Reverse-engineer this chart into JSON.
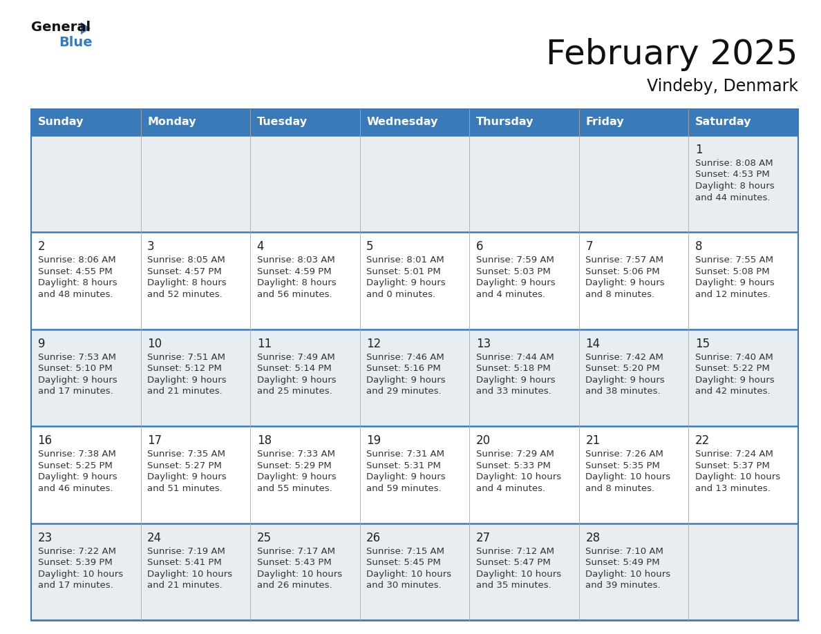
{
  "title": "February 2025",
  "subtitle": "Vindeby, Denmark",
  "header_color": "#3a7ab8",
  "header_text_color": "#ffffff",
  "row_bg_gray": "#e8edf2",
  "row_bg_white": "#ffffff",
  "line_color": "#3a7ab8",
  "days_of_week": [
    "Sunday",
    "Monday",
    "Tuesday",
    "Wednesday",
    "Thursday",
    "Friday",
    "Saturday"
  ],
  "calendar_data": [
    [
      {
        "day": null
      },
      {
        "day": null
      },
      {
        "day": null
      },
      {
        "day": null
      },
      {
        "day": null
      },
      {
        "day": null
      },
      {
        "day": 1,
        "sunrise": "8:08 AM",
        "sunset": "4:53 PM",
        "daylight1": "Daylight: 8 hours",
        "daylight2": "and 44 minutes."
      }
    ],
    [
      {
        "day": 2,
        "sunrise": "8:06 AM",
        "sunset": "4:55 PM",
        "daylight1": "Daylight: 8 hours",
        "daylight2": "and 48 minutes."
      },
      {
        "day": 3,
        "sunrise": "8:05 AM",
        "sunset": "4:57 PM",
        "daylight1": "Daylight: 8 hours",
        "daylight2": "and 52 minutes."
      },
      {
        "day": 4,
        "sunrise": "8:03 AM",
        "sunset": "4:59 PM",
        "daylight1": "Daylight: 8 hours",
        "daylight2": "and 56 minutes."
      },
      {
        "day": 5,
        "sunrise": "8:01 AM",
        "sunset": "5:01 PM",
        "daylight1": "Daylight: 9 hours",
        "daylight2": "and 0 minutes."
      },
      {
        "day": 6,
        "sunrise": "7:59 AM",
        "sunset": "5:03 PM",
        "daylight1": "Daylight: 9 hours",
        "daylight2": "and 4 minutes."
      },
      {
        "day": 7,
        "sunrise": "7:57 AM",
        "sunset": "5:06 PM",
        "daylight1": "Daylight: 9 hours",
        "daylight2": "and 8 minutes."
      },
      {
        "day": 8,
        "sunrise": "7:55 AM",
        "sunset": "5:08 PM",
        "daylight1": "Daylight: 9 hours",
        "daylight2": "and 12 minutes."
      }
    ],
    [
      {
        "day": 9,
        "sunrise": "7:53 AM",
        "sunset": "5:10 PM",
        "daylight1": "Daylight: 9 hours",
        "daylight2": "and 17 minutes."
      },
      {
        "day": 10,
        "sunrise": "7:51 AM",
        "sunset": "5:12 PM",
        "daylight1": "Daylight: 9 hours",
        "daylight2": "and 21 minutes."
      },
      {
        "day": 11,
        "sunrise": "7:49 AM",
        "sunset": "5:14 PM",
        "daylight1": "Daylight: 9 hours",
        "daylight2": "and 25 minutes."
      },
      {
        "day": 12,
        "sunrise": "7:46 AM",
        "sunset": "5:16 PM",
        "daylight1": "Daylight: 9 hours",
        "daylight2": "and 29 minutes."
      },
      {
        "day": 13,
        "sunrise": "7:44 AM",
        "sunset": "5:18 PM",
        "daylight1": "Daylight: 9 hours",
        "daylight2": "and 33 minutes."
      },
      {
        "day": 14,
        "sunrise": "7:42 AM",
        "sunset": "5:20 PM",
        "daylight1": "Daylight: 9 hours",
        "daylight2": "and 38 minutes."
      },
      {
        "day": 15,
        "sunrise": "7:40 AM",
        "sunset": "5:22 PM",
        "daylight1": "Daylight: 9 hours",
        "daylight2": "and 42 minutes."
      }
    ],
    [
      {
        "day": 16,
        "sunrise": "7:38 AM",
        "sunset": "5:25 PM",
        "daylight1": "Daylight: 9 hours",
        "daylight2": "and 46 minutes."
      },
      {
        "day": 17,
        "sunrise": "7:35 AM",
        "sunset": "5:27 PM",
        "daylight1": "Daylight: 9 hours",
        "daylight2": "and 51 minutes."
      },
      {
        "day": 18,
        "sunrise": "7:33 AM",
        "sunset": "5:29 PM",
        "daylight1": "Daylight: 9 hours",
        "daylight2": "and 55 minutes."
      },
      {
        "day": 19,
        "sunrise": "7:31 AM",
        "sunset": "5:31 PM",
        "daylight1": "Daylight: 9 hours",
        "daylight2": "and 59 minutes."
      },
      {
        "day": 20,
        "sunrise": "7:29 AM",
        "sunset": "5:33 PM",
        "daylight1": "Daylight: 10 hours",
        "daylight2": "and 4 minutes."
      },
      {
        "day": 21,
        "sunrise": "7:26 AM",
        "sunset": "5:35 PM",
        "daylight1": "Daylight: 10 hours",
        "daylight2": "and 8 minutes."
      },
      {
        "day": 22,
        "sunrise": "7:24 AM",
        "sunset": "5:37 PM",
        "daylight1": "Daylight: 10 hours",
        "daylight2": "and 13 minutes."
      }
    ],
    [
      {
        "day": 23,
        "sunrise": "7:22 AM",
        "sunset": "5:39 PM",
        "daylight1": "Daylight: 10 hours",
        "daylight2": "and 17 minutes."
      },
      {
        "day": 24,
        "sunrise": "7:19 AM",
        "sunset": "5:41 PM",
        "daylight1": "Daylight: 10 hours",
        "daylight2": "and 21 minutes."
      },
      {
        "day": 25,
        "sunrise": "7:17 AM",
        "sunset": "5:43 PM",
        "daylight1": "Daylight: 10 hours",
        "daylight2": "and 26 minutes."
      },
      {
        "day": 26,
        "sunrise": "7:15 AM",
        "sunset": "5:45 PM",
        "daylight1": "Daylight: 10 hours",
        "daylight2": "and 30 minutes."
      },
      {
        "day": 27,
        "sunrise": "7:12 AM",
        "sunset": "5:47 PM",
        "daylight1": "Daylight: 10 hours",
        "daylight2": "and 35 minutes."
      },
      {
        "day": 28,
        "sunrise": "7:10 AM",
        "sunset": "5:49 PM",
        "daylight1": "Daylight: 10 hours",
        "daylight2": "and 39 minutes."
      },
      {
        "day": null
      }
    ]
  ]
}
